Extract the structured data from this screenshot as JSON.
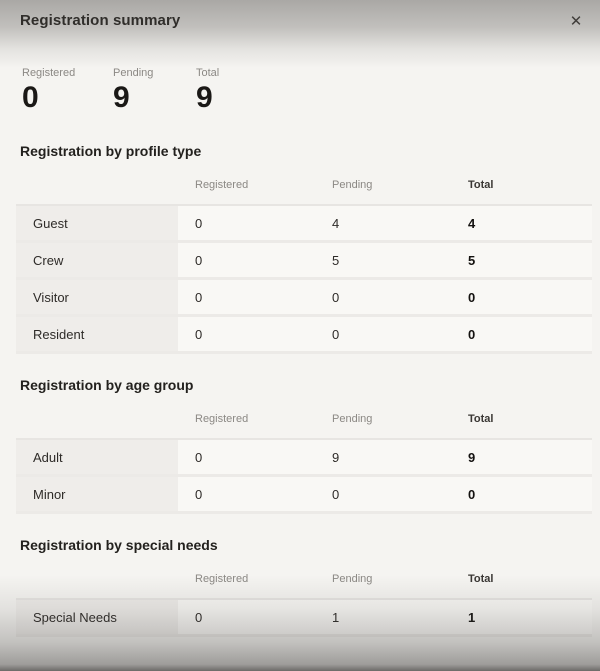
{
  "header": {
    "title": "Registration summary",
    "close_glyph": "✕"
  },
  "stats": [
    {
      "label": "Registered",
      "value": "0"
    },
    {
      "label": "Pending",
      "value": "9"
    },
    {
      "label": "Total",
      "value": "9"
    }
  ],
  "columns": [
    "Registered",
    "Pending",
    "Total"
  ],
  "tables": [
    {
      "title": "Registration by profile type",
      "rows": [
        {
          "label": "Guest",
          "values": [
            "0",
            "4",
            "4"
          ]
        },
        {
          "label": "Crew",
          "values": [
            "0",
            "5",
            "5"
          ]
        },
        {
          "label": "Visitor",
          "values": [
            "0",
            "0",
            "0"
          ]
        },
        {
          "label": "Resident",
          "values": [
            "0",
            "0",
            "0"
          ]
        }
      ]
    },
    {
      "title": "Registration by age group",
      "rows": [
        {
          "label": "Adult",
          "values": [
            "0",
            "9",
            "9"
          ]
        },
        {
          "label": "Minor",
          "values": [
            "0",
            "0",
            "0"
          ]
        }
      ]
    },
    {
      "title": "Registration by special needs",
      "rows": [
        {
          "label": "Special Needs",
          "values": [
            "0",
            "1",
            "1"
          ]
        }
      ]
    }
  ],
  "colors": {
    "page_bg": "#f5f4f1",
    "row_label_bg": "#efedea",
    "row_value_bg": "#f9f8f5",
    "separator": "#e7e5e2",
    "muted_text": "#8b8884",
    "dark_text": "#2e2b28",
    "title_text": "#23211e"
  }
}
